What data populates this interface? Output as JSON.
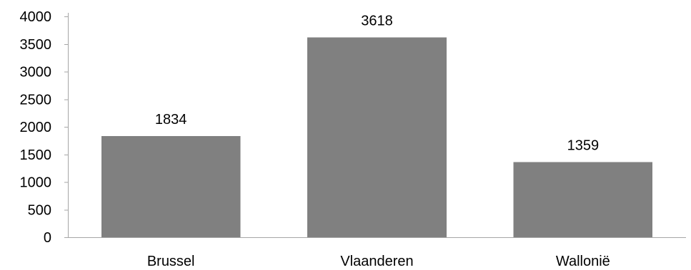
{
  "chart_data": {
    "type": "bar",
    "title": "",
    "xlabel": "",
    "ylabel": "",
    "categories": [
      "Brussel",
      "Vlaanderen",
      "Wallonië"
    ],
    "values": [
      1834,
      3618,
      1359
    ],
    "data_labels": [
      "1834",
      "3618",
      "1359"
    ],
    "ylim": [
      0,
      4000
    ],
    "yticks": [
      0,
      500,
      1000,
      1500,
      2000,
      2500,
      3000,
      3500,
      4000
    ],
    "ytick_labels": [
      "0",
      "500",
      "1000",
      "1500",
      "2000",
      "2500",
      "3000",
      "3500",
      "4000"
    ],
    "grid": false,
    "legend": "none",
    "bar_color": "#808080",
    "axis_color": "#a6a6a6"
  }
}
